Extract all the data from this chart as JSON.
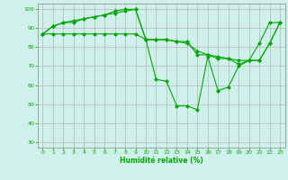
{
  "xlabel": "Humidité relative (%)",
  "background_color": "#cff0eb",
  "grid_color": "#aaaaaa",
  "line_color": "#00aa00",
  "marker": "D",
  "markersize": 2.0,
  "linewidth": 0.8,
  "ylim": [
    27,
    103
  ],
  "yticks": [
    30,
    40,
    50,
    60,
    70,
    80,
    90,
    100
  ],
  "xlim": [
    -0.5,
    23.5
  ],
  "xticks": [
    0,
    1,
    2,
    3,
    4,
    5,
    6,
    7,
    8,
    9,
    10,
    11,
    12,
    13,
    14,
    15,
    16,
    17,
    18,
    19,
    20,
    21,
    22,
    23
  ],
  "tick_fontsize": 4.5,
  "xlabel_fontsize": 5.5,
  "series": [
    [
      87,
      91,
      93,
      94,
      95,
      96,
      97,
      98,
      99,
      100,
      84,
      63,
      62,
      49,
      49,
      47,
      75,
      57,
      59,
      70,
      73,
      82,
      93,
      93
    ],
    [
      87,
      91,
      93,
      93,
      95,
      96,
      97,
      99,
      100,
      100,
      84,
      84,
      84,
      83,
      83,
      76,
      76,
      74,
      74,
      71,
      73,
      73,
      82,
      93
    ],
    [
      87,
      87,
      87,
      87,
      87,
      87,
      87,
      87,
      87,
      87,
      84,
      84,
      84,
      83,
      82,
      78,
      76,
      75,
      74,
      73,
      73,
      73,
      82,
      93
    ]
  ]
}
